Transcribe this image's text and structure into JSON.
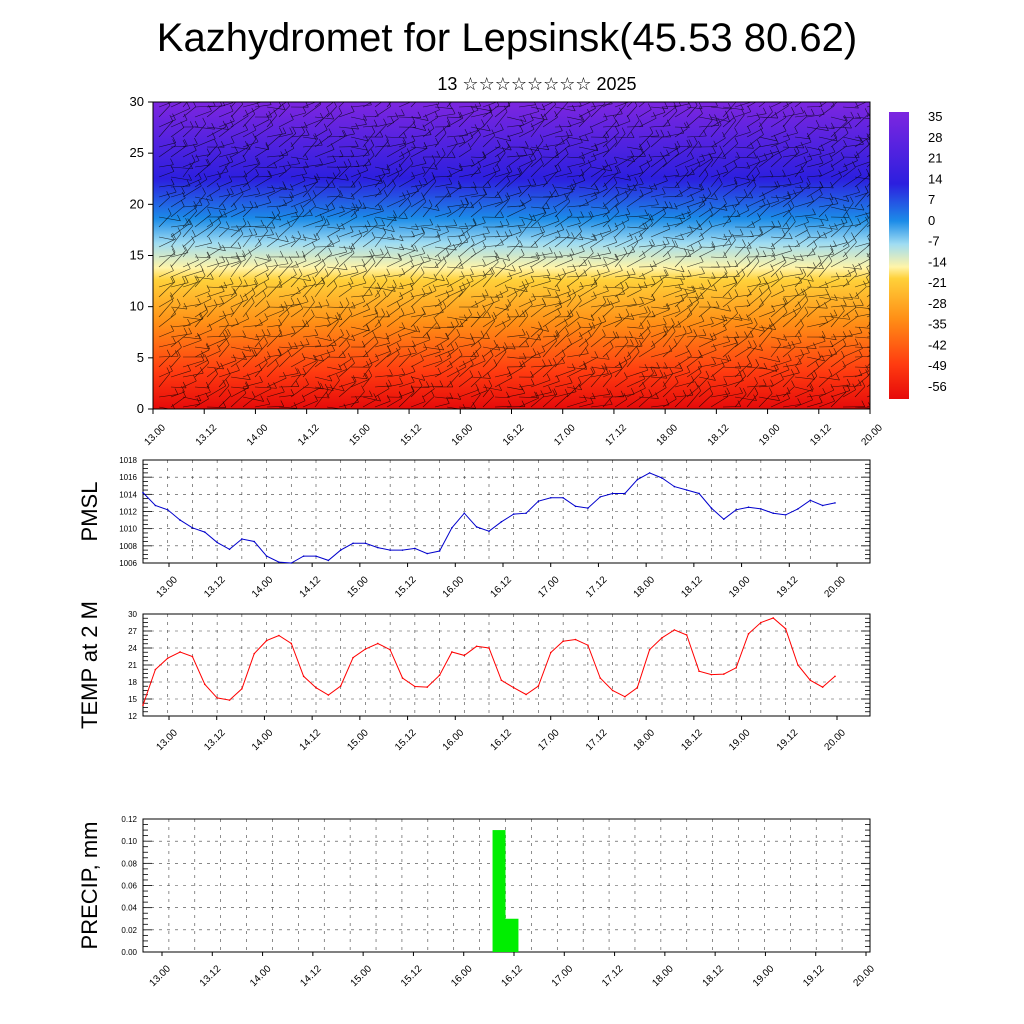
{
  "header": {
    "title": "Kazhydromet for Lepsinsk(45.53 80.62)",
    "subtitle": "13 ☆☆☆☆☆☆☆☆ 2025"
  },
  "time_ticks": [
    "13.00",
    "13.12",
    "14.00",
    "14.12",
    "15.00",
    "15.12",
    "16.00",
    "16.12",
    "17.00",
    "17.12",
    "18.00",
    "18.12",
    "19.00",
    "19.12",
    "20.00"
  ],
  "colorbar": {
    "labels": [
      "35",
      "28",
      "21",
      "14",
      "7",
      "0",
      "-7",
      "-14",
      "-21",
      "-28",
      "-35",
      "-42",
      "-49",
      "-56"
    ]
  },
  "chart_data": [
    {
      "type": "heatmap",
      "title": "",
      "xlabel": "",
      "ylabel": "",
      "ylim": [
        0,
        30
      ],
      "y_ticks": [
        "0",
        "5",
        "10",
        "15",
        "20",
        "25",
        "30"
      ],
      "x_ticks": [
        "13.00",
        "13.12",
        "14.00",
        "14.12",
        "15.00",
        "15.12",
        "16.00",
        "16.12",
        "17.00",
        "17.12",
        "18.00",
        "18.12",
        "19.00",
        "19.12",
        "20.00"
      ],
      "color_scale": {
        "min": -56,
        "max": 35,
        "colors": [
          "#7d26e0",
          "#2c1fdf",
          "#1c8ce8",
          "#7fd3f0",
          "#fff4a8",
          "#ffd13a",
          "#ff8f16",
          "#ff3b10",
          "#e60a0a"
        ]
      },
      "colorbar_labels": [
        "35",
        "28",
        "21",
        "14",
        "7",
        "0",
        "-7",
        "-14",
        "-21",
        "-28",
        "-35",
        "-42",
        "-49",
        "-56"
      ],
      "overlay": "wind barbs"
    },
    {
      "type": "line",
      "ylabel": "PMSL",
      "ylim": [
        1006,
        1018
      ],
      "y_ticks": [
        "1006",
        "1008",
        "1010",
        "1012",
        "1014",
        "1016",
        "1018"
      ],
      "x_ticks": [
        "13.00",
        "13.12",
        "14.00",
        "14.12",
        "15.00",
        "15.12",
        "16.00",
        "16.12",
        "17.00",
        "17.12",
        "18.00",
        "18.12",
        "19.00",
        "19.12",
        "20.00"
      ],
      "color": "#0000cc",
      "x": [
        0,
        3,
        6,
        9,
        12,
        15,
        18,
        21,
        24,
        27,
        30,
        33,
        36,
        39,
        42,
        45,
        48,
        51,
        54,
        57,
        60,
        63,
        66,
        69,
        72,
        75,
        78,
        81,
        84,
        87,
        90,
        93,
        96,
        99,
        102,
        105,
        108,
        111,
        114,
        117,
        120,
        123,
        126,
        129,
        132,
        135,
        138,
        141,
        144,
        147,
        150,
        153,
        156,
        159,
        162,
        165,
        168
      ],
      "values": [
        1014.2,
        1012.7,
        1012.2,
        1011.0,
        1010.1,
        1009.6,
        1008.4,
        1007.6,
        1008.8,
        1008.5,
        1006.8,
        1006.1,
        1006.0,
        1006.8,
        1006.8,
        1006.3,
        1007.5,
        1008.3,
        1008.3,
        1007.8,
        1007.5,
        1007.5,
        1007.7,
        1007.1,
        1007.4,
        1010.1,
        1011.8,
        1010.2,
        1009.7,
        1010.8,
        1011.7,
        1011.8,
        1013.2,
        1013.6,
        1013.6,
        1012.6,
        1012.4,
        1013.7,
        1014.1,
        1014.1,
        1015.7,
        1016.5,
        1015.9,
        1014.9,
        1014.5,
        1014.1,
        1012.4,
        1011.1,
        1012.2,
        1012.5,
        1012.3,
        1011.8,
        1011.6,
        1012.3,
        1013.3,
        1012.7,
        1013.0
      ]
    },
    {
      "type": "line",
      "ylabel": "TEMP at 2 M",
      "ylim": [
        12,
        30
      ],
      "y_ticks": [
        "12",
        "15",
        "18",
        "21",
        "24",
        "27",
        "30"
      ],
      "x_ticks": [
        "13.00",
        "13.12",
        "14.00",
        "14.12",
        "15.00",
        "15.12",
        "16.00",
        "16.12",
        "17.00",
        "17.12",
        "18.00",
        "18.12",
        "19.00",
        "19.12",
        "20.00"
      ],
      "color": "#ff0000",
      "x": [
        0,
        3,
        6,
        9,
        12,
        15,
        18,
        21,
        24,
        27,
        30,
        33,
        36,
        39,
        42,
        45,
        48,
        51,
        54,
        57,
        60,
        63,
        66,
        69,
        72,
        75,
        78,
        81,
        84,
        87,
        90,
        93,
        96,
        99,
        102,
        105,
        108,
        111,
        114,
        117,
        120,
        123,
        126,
        129,
        132,
        135,
        138,
        141,
        144,
        147,
        150,
        153,
        156,
        159,
        162,
        165,
        168
      ],
      "values": [
        13.9,
        20.2,
        22.2,
        23.3,
        22.5,
        17.6,
        15.2,
        14.8,
        16.8,
        23.0,
        25.3,
        26.2,
        24.8,
        19.0,
        17.0,
        15.7,
        17.3,
        22.3,
        23.8,
        24.8,
        23.7,
        18.7,
        17.2,
        17.1,
        19.2,
        23.3,
        22.7,
        24.3,
        24.0,
        18.3,
        17.0,
        15.8,
        17.3,
        23.2,
        25.2,
        25.5,
        24.5,
        18.7,
        16.5,
        15.4,
        17.0,
        23.7,
        25.8,
        27.2,
        26.3,
        19.9,
        19.3,
        19.4,
        20.5,
        26.5,
        28.5,
        29.3,
        27.4,
        21.0,
        18.3,
        17.1,
        19.0
      ]
    },
    {
      "type": "bar",
      "ylabel": "PRECIP, mm",
      "ylim": [
        0,
        0.12
      ],
      "y_ticks": [
        "0.00",
        "0.02",
        "0.04",
        "0.06",
        "0.08",
        "0.10",
        "0.12"
      ],
      "x_ticks": [
        "13.00",
        "13.12",
        "14.00",
        "14.12",
        "15.00",
        "15.12",
        "16.00",
        "16.12",
        "17.00",
        "17.12",
        "18.00",
        "18.12",
        "19.00",
        "19.12",
        "20.00"
      ],
      "color": "#00ee00",
      "x": [
        81,
        84
      ],
      "values": [
        0.11,
        0.03
      ],
      "bar_hours": 3
    }
  ]
}
